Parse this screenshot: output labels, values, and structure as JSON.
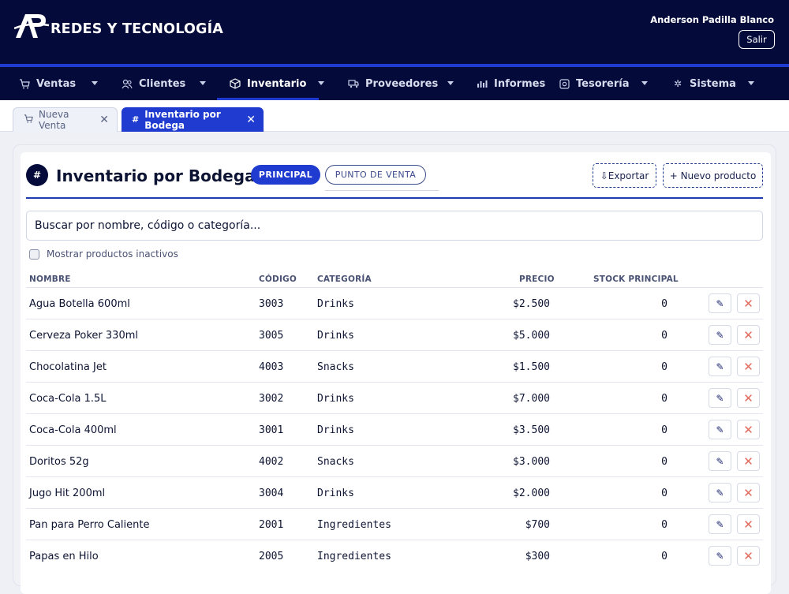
{
  "brand": {
    "name": "REDES Y TECNOLOGÍA"
  },
  "user": {
    "name": "Anderson Padilla Blanco",
    "logout_label": "Salir"
  },
  "nav": {
    "items": [
      {
        "label": "Ventas",
        "icon": "cart-icon"
      },
      {
        "label": "Clientes",
        "icon": "users-icon"
      },
      {
        "label": "Inventario",
        "icon": "box-icon"
      },
      {
        "label": "Proveedores",
        "icon": "truck-icon"
      },
      {
        "label": "Informes",
        "icon": "chart-icon"
      },
      {
        "label": "Tesorería",
        "icon": "safe-icon"
      },
      {
        "label": "Sistema",
        "icon": "gear-icon"
      }
    ]
  },
  "tabs": [
    {
      "label": "Nueva Venta",
      "icon": "cart-icon"
    },
    {
      "label": "Inventario por Bodega",
      "icon": "hash-icon"
    }
  ],
  "page": {
    "title": "Inventario por Bodega",
    "badge": "#",
    "pills": [
      "PRINCIPAL",
      "PUNTO DE VENTA"
    ],
    "export_label": "⇩Exportar",
    "new_label": "+ Nuevo producto",
    "search_placeholder": "Buscar por nombre, código o categoría...",
    "show_inactive_label": "Mostrar productos inactivos"
  },
  "table": {
    "headers": {
      "name": "NOMBRE",
      "code": "CÓDIGO",
      "category": "CATEGORÍA",
      "price": "PRECIO",
      "stock": "STOCK PRINCIPAL"
    },
    "rows": [
      {
        "name": "Agua Botella 600ml",
        "code": "3003",
        "category": "Drinks",
        "price": "$2.500",
        "stock": "0"
      },
      {
        "name": "Cerveza Poker 330ml",
        "code": "3005",
        "category": "Drinks",
        "price": "$5.000",
        "stock": "0"
      },
      {
        "name": "Chocolatina Jet",
        "code": "4003",
        "category": "Snacks",
        "price": "$1.500",
        "stock": "0"
      },
      {
        "name": "Coca-Cola 1.5L",
        "code": "3002",
        "category": "Drinks",
        "price": "$7.000",
        "stock": "0"
      },
      {
        "name": "Coca-Cola 400ml",
        "code": "3001",
        "category": "Drinks",
        "price": "$3.500",
        "stock": "0"
      },
      {
        "name": "Doritos 52g",
        "code": "4002",
        "category": "Snacks",
        "price": "$3.000",
        "stock": "0"
      },
      {
        "name": "Jugo Hit 200ml",
        "code": "3004",
        "category": "Drinks",
        "price": "$2.000",
        "stock": "0"
      },
      {
        "name": "Pan para Perro Caliente",
        "code": "2001",
        "category": "Ingredientes",
        "price": "$700",
        "stock": "0"
      },
      {
        "name": "Papas en Hilo",
        "code": "2005",
        "category": "Ingredientes",
        "price": "$300",
        "stock": "0"
      }
    ]
  },
  "colors": {
    "navy": "#040b3a",
    "accent": "#1f3bd0",
    "danger": "#e06a5b"
  }
}
